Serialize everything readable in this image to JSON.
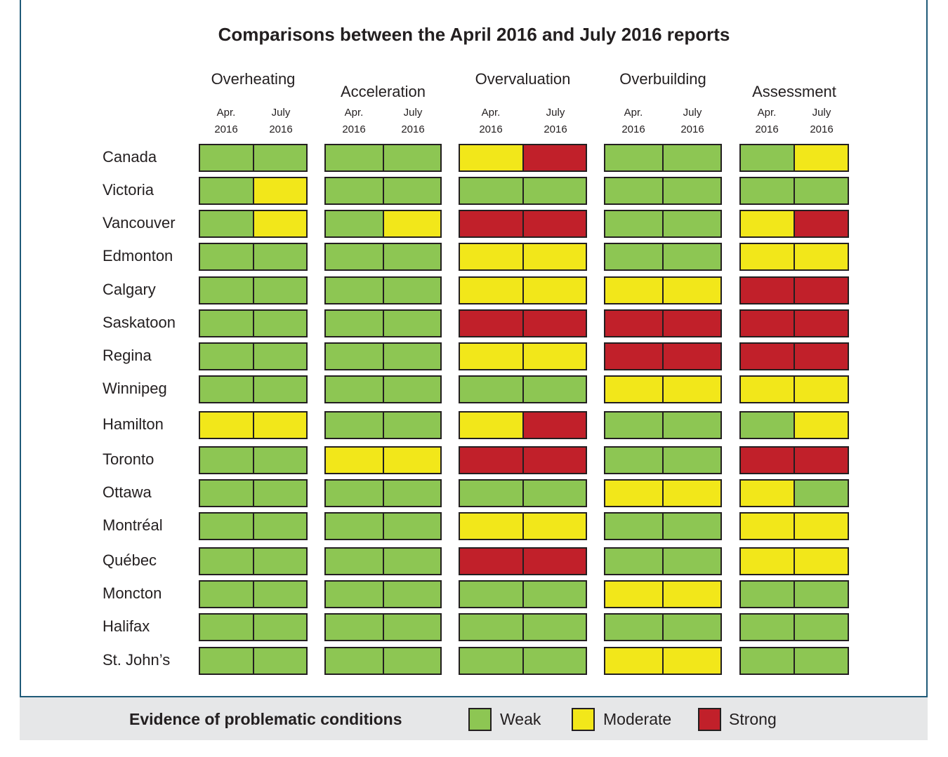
{
  "chart_data": {
    "type": "heatmap",
    "title": "Comparisons between the April 2016 and July 2016 reports",
    "groups": [
      "Overheating",
      "Acceleration",
      "Overvaluation",
      "Overbuilding",
      "Assessment"
    ],
    "periods": [
      {
        "line1": "Apr.",
        "line2": "2016"
      },
      {
        "line1": "July",
        "line2": "2016"
      }
    ],
    "rows": [
      "Canada",
      "Victoria",
      "Vancouver",
      "Edmonton",
      "Calgary",
      "Saskatoon",
      "Regina",
      "Winnipeg",
      "Hamilton",
      "Toronto",
      "Ottawa",
      "Montréal",
      "Québec",
      "Moncton",
      "Halifax",
      "St.  John’s"
    ],
    "levels": [
      "Weak",
      "Moderate",
      "Strong"
    ],
    "colors": {
      "Weak": "#8dc653",
      "Moderate": "#f2e71a",
      "Strong": "#c1202a"
    },
    "values": [
      [
        [
          "Weak",
          "Weak"
        ],
        [
          "Weak",
          "Weak"
        ],
        [
          "Moderate",
          "Strong"
        ],
        [
          "Weak",
          "Weak"
        ],
        [
          "Weak",
          "Moderate"
        ]
      ],
      [
        [
          "Weak",
          "Moderate"
        ],
        [
          "Weak",
          "Weak"
        ],
        [
          "Weak",
          "Weak"
        ],
        [
          "Weak",
          "Weak"
        ],
        [
          "Weak",
          "Weak"
        ]
      ],
      [
        [
          "Weak",
          "Moderate"
        ],
        [
          "Weak",
          "Moderate"
        ],
        [
          "Strong",
          "Strong"
        ],
        [
          "Weak",
          "Weak"
        ],
        [
          "Moderate",
          "Strong"
        ]
      ],
      [
        [
          "Weak",
          "Weak"
        ],
        [
          "Weak",
          "Weak"
        ],
        [
          "Moderate",
          "Moderate"
        ],
        [
          "Weak",
          "Weak"
        ],
        [
          "Moderate",
          "Moderate"
        ]
      ],
      [
        [
          "Weak",
          "Weak"
        ],
        [
          "Weak",
          "Weak"
        ],
        [
          "Moderate",
          "Moderate"
        ],
        [
          "Moderate",
          "Moderate"
        ],
        [
          "Strong",
          "Strong"
        ]
      ],
      [
        [
          "Weak",
          "Weak"
        ],
        [
          "Weak",
          "Weak"
        ],
        [
          "Strong",
          "Strong"
        ],
        [
          "Strong",
          "Strong"
        ],
        [
          "Strong",
          "Strong"
        ]
      ],
      [
        [
          "Weak",
          "Weak"
        ],
        [
          "Weak",
          "Weak"
        ],
        [
          "Moderate",
          "Moderate"
        ],
        [
          "Strong",
          "Strong"
        ],
        [
          "Strong",
          "Strong"
        ]
      ],
      [
        [
          "Weak",
          "Weak"
        ],
        [
          "Weak",
          "Weak"
        ],
        [
          "Weak",
          "Weak"
        ],
        [
          "Moderate",
          "Moderate"
        ],
        [
          "Moderate",
          "Moderate"
        ]
      ],
      [
        [
          "Moderate",
          "Moderate"
        ],
        [
          "Weak",
          "Weak"
        ],
        [
          "Moderate",
          "Strong"
        ],
        [
          "Weak",
          "Weak"
        ],
        [
          "Weak",
          "Moderate"
        ]
      ],
      [
        [
          "Weak",
          "Weak"
        ],
        [
          "Moderate",
          "Moderate"
        ],
        [
          "Strong",
          "Strong"
        ],
        [
          "Weak",
          "Weak"
        ],
        [
          "Strong",
          "Strong"
        ]
      ],
      [
        [
          "Weak",
          "Weak"
        ],
        [
          "Weak",
          "Weak"
        ],
        [
          "Weak",
          "Weak"
        ],
        [
          "Moderate",
          "Moderate"
        ],
        [
          "Moderate",
          "Weak"
        ]
      ],
      [
        [
          "Weak",
          "Weak"
        ],
        [
          "Weak",
          "Weak"
        ],
        [
          "Moderate",
          "Moderate"
        ],
        [
          "Weak",
          "Weak"
        ],
        [
          "Moderate",
          "Moderate"
        ]
      ],
      [
        [
          "Weak",
          "Weak"
        ],
        [
          "Weak",
          "Weak"
        ],
        [
          "Strong",
          "Strong"
        ],
        [
          "Weak",
          "Weak"
        ],
        [
          "Moderate",
          "Moderate"
        ]
      ],
      [
        [
          "Weak",
          "Weak"
        ],
        [
          "Weak",
          "Weak"
        ],
        [
          "Weak",
          "Weak"
        ],
        [
          "Moderate",
          "Moderate"
        ],
        [
          "Weak",
          "Weak"
        ]
      ],
      [
        [
          "Weak",
          "Weak"
        ],
        [
          "Weak",
          "Weak"
        ],
        [
          "Weak",
          "Weak"
        ],
        [
          "Weak",
          "Weak"
        ],
        [
          "Weak",
          "Weak"
        ]
      ],
      [
        [
          "Weak",
          "Weak"
        ],
        [
          "Weak",
          "Weak"
        ],
        [
          "Weak",
          "Weak"
        ],
        [
          "Moderate",
          "Moderate"
        ],
        [
          "Weak",
          "Weak"
        ]
      ]
    ],
    "legend": {
      "title": "Evidence of problematic conditions",
      "items": [
        "Weak",
        "Moderate",
        "Strong"
      ],
      "placement": "bottom"
    }
  }
}
